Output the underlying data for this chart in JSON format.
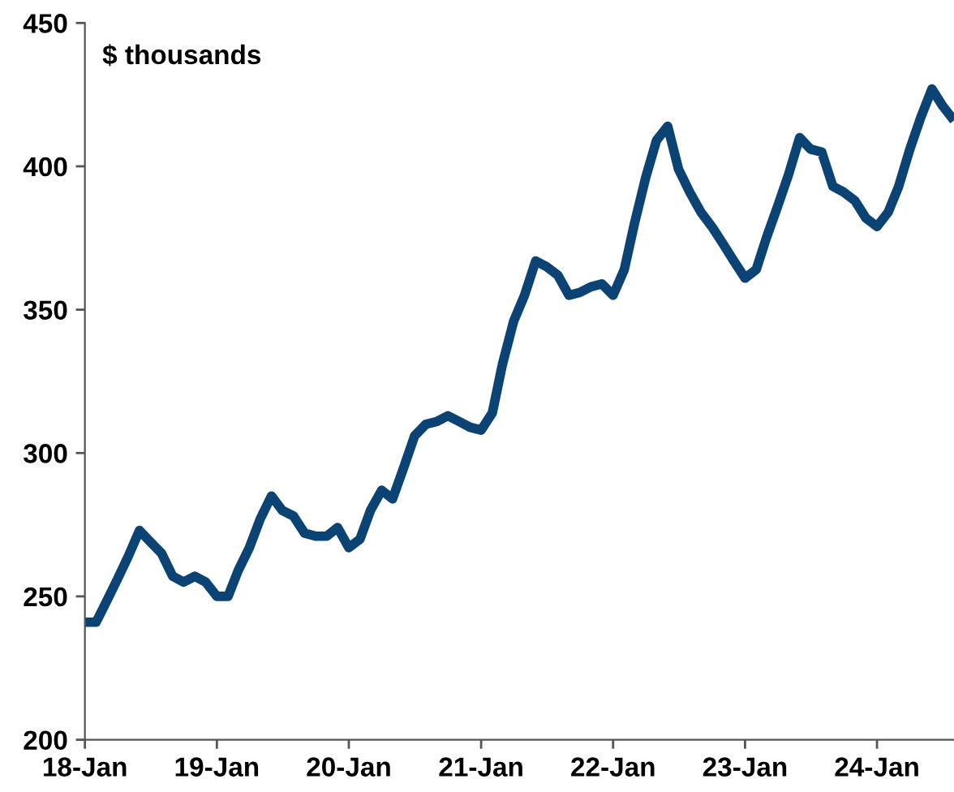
{
  "chart_data": {
    "type": "line",
    "annotations": [
      "$ thousands"
    ],
    "x": [
      "2018-01",
      "2018-02",
      "2018-03",
      "2018-04",
      "2018-05",
      "2018-06",
      "2018-07",
      "2018-08",
      "2018-09",
      "2018-10",
      "2018-11",
      "2018-12",
      "2019-01",
      "2019-02",
      "2019-03",
      "2019-04",
      "2019-05",
      "2019-06",
      "2019-07",
      "2019-08",
      "2019-09",
      "2019-10",
      "2019-11",
      "2019-12",
      "2020-01",
      "2020-02",
      "2020-03",
      "2020-04",
      "2020-05",
      "2020-06",
      "2020-07",
      "2020-08",
      "2020-09",
      "2020-10",
      "2020-11",
      "2020-12",
      "2021-01",
      "2021-02",
      "2021-03",
      "2021-04",
      "2021-05",
      "2021-06",
      "2021-07",
      "2021-08",
      "2021-09",
      "2021-10",
      "2021-11",
      "2021-12",
      "2022-01",
      "2022-02",
      "2022-03",
      "2022-04",
      "2022-05",
      "2022-06",
      "2022-07",
      "2022-08",
      "2022-09",
      "2022-10",
      "2022-11",
      "2022-12",
      "2023-01",
      "2023-02",
      "2023-03",
      "2023-04",
      "2023-05",
      "2023-06",
      "2023-07",
      "2023-08",
      "2023-09",
      "2023-10",
      "2023-11",
      "2023-12",
      "2024-01",
      "2024-02",
      "2024-03",
      "2024-04",
      "2024-05",
      "2024-06",
      "2024-07",
      "2024-08"
    ],
    "series": [
      {
        "color": "#0b4474",
        "values": [
          241,
          241,
          248,
          256,
          264,
          273,
          269,
          265,
          257,
          255,
          257,
          255,
          250,
          250,
          259,
          267,
          277,
          285,
          280,
          278,
          272,
          271,
          271,
          274,
          267,
          270,
          280,
          287,
          284,
          295,
          306,
          310,
          311,
          313,
          311,
          309,
          308,
          314,
          331,
          346,
          355,
          367,
          365,
          362,
          355,
          356,
          358,
          359,
          355,
          364,
          380,
          396,
          409,
          414,
          399,
          391,
          384,
          379,
          373,
          367,
          361,
          364,
          375,
          386,
          397,
          410,
          406,
          405,
          393,
          391,
          388,
          382,
          379,
          384,
          393,
          406,
          417,
          427,
          421,
          416
        ]
      }
    ],
    "xlim": [
      "2018-01",
      "2024-08"
    ],
    "xticks": [
      {
        "value": "2018-01",
        "label": "18-Jan"
      },
      {
        "value": "2019-01",
        "label": "19-Jan"
      },
      {
        "value": "2020-01",
        "label": "20-Jan"
      },
      {
        "value": "2021-01",
        "label": "21-Jan"
      },
      {
        "value": "2022-01",
        "label": "22-Jan"
      },
      {
        "value": "2023-01",
        "label": "23-Jan"
      },
      {
        "value": "2024-01",
        "label": "24-Jan"
      }
    ],
    "ylim": [
      200,
      450
    ],
    "yticks": [
      200,
      250,
      300,
      350,
      400,
      450
    ],
    "grid": false,
    "legend": false,
    "marker": "none",
    "line_style": "solid"
  }
}
